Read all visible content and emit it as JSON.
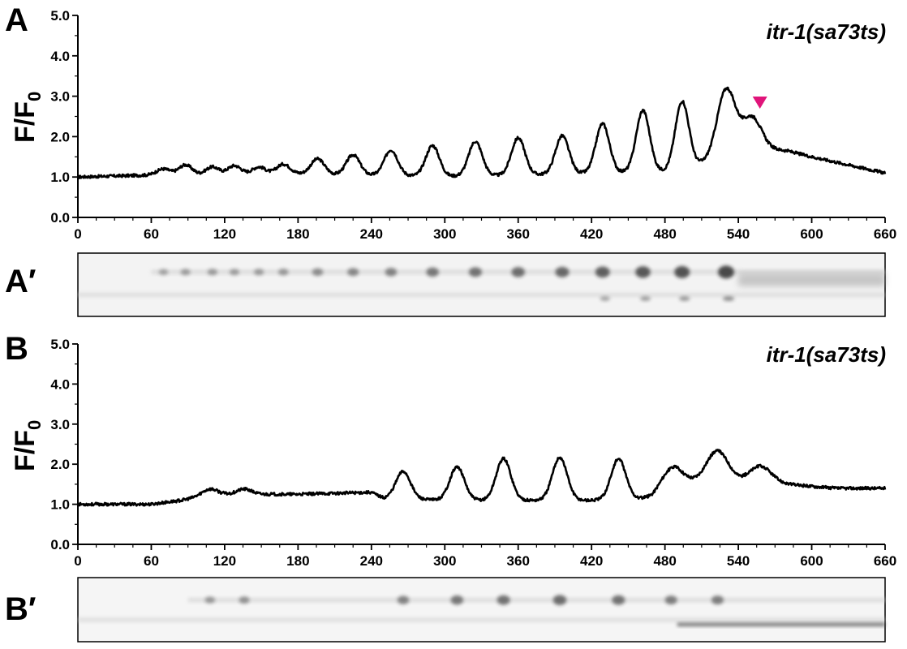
{
  "colors": {
    "trace": "#000000",
    "marker": "#e0147a",
    "kymo_bg": "#f2f2f2",
    "kymo_dark": "#404040"
  },
  "chart_data": [
    {
      "type": "line",
      "panel": "A",
      "annotation": "itr-1(sa73ts)",
      "ylabel_main": "F/F",
      "ylabel_sub": "0",
      "xlim": [
        0,
        660
      ],
      "ylim": [
        0,
        5
      ],
      "x_ticks": [
        0,
        60,
        120,
        180,
        240,
        300,
        360,
        420,
        480,
        540,
        600,
        660
      ],
      "y_ticks": [
        "0.0",
        "1.0",
        "2.0",
        "3.0",
        "4.0",
        "5.0"
      ],
      "grid": false,
      "marker_x": 555,
      "baseline": [
        [
          0,
          1.0
        ],
        [
          60,
          1.05
        ],
        [
          120,
          1.05
        ],
        [
          180,
          1.08
        ],
        [
          240,
          1.05
        ],
        [
          300,
          1.02
        ],
        [
          360,
          1.05
        ],
        [
          420,
          1.1
        ],
        [
          480,
          1.15
        ],
        [
          520,
          1.4
        ],
        [
          540,
          1.65
        ],
        [
          560,
          1.72
        ],
        [
          580,
          1.65
        ],
        [
          600,
          1.5
        ],
        [
          630,
          1.3
        ],
        [
          660,
          1.1
        ]
      ],
      "peaks": [
        {
          "x": 70,
          "y": 1.2
        },
        {
          "x": 88,
          "y": 1.3
        },
        {
          "x": 110,
          "y": 1.25
        },
        {
          "x": 128,
          "y": 1.28
        },
        {
          "x": 148,
          "y": 1.25
        },
        {
          "x": 168,
          "y": 1.32
        },
        {
          "x": 196,
          "y": 1.45
        },
        {
          "x": 225,
          "y": 1.55
        },
        {
          "x": 256,
          "y": 1.67
        },
        {
          "x": 290,
          "y": 1.78
        },
        {
          "x": 325,
          "y": 1.88
        },
        {
          "x": 360,
          "y": 1.97
        },
        {
          "x": 396,
          "y": 2.02
        },
        {
          "x": 429,
          "y": 2.32
        },
        {
          "x": 462,
          "y": 2.65
        },
        {
          "x": 494,
          "y": 2.88
        },
        {
          "x": 530,
          "y": 3.18
        },
        {
          "x": 551,
          "y": 2.48
        }
      ]
    },
    {
      "type": "line",
      "panel": "B",
      "annotation": "itr-1(sa73ts)",
      "ylabel_main": "F/F",
      "ylabel_sub": "0",
      "xlim": [
        0,
        660
      ],
      "ylim": [
        0,
        5
      ],
      "x_ticks": [
        0,
        60,
        120,
        180,
        240,
        300,
        360,
        420,
        480,
        540,
        600,
        660
      ],
      "y_ticks": [
        "0.0",
        "1.0",
        "2.0",
        "3.0",
        "4.0",
        "5.0"
      ],
      "grid": false,
      "baseline": [
        [
          0,
          1.0
        ],
        [
          60,
          1.0
        ],
        [
          85,
          1.1
        ],
        [
          100,
          1.2
        ],
        [
          120,
          1.25
        ],
        [
          180,
          1.25
        ],
        [
          240,
          1.3
        ],
        [
          250,
          1.15
        ],
        [
          300,
          1.1
        ],
        [
          360,
          1.1
        ],
        [
          420,
          1.1
        ],
        [
          470,
          1.15
        ],
        [
          490,
          1.5
        ],
        [
          520,
          1.6
        ],
        [
          540,
          1.55
        ],
        [
          580,
          1.5
        ],
        [
          620,
          1.4
        ],
        [
          660,
          1.4
        ]
      ],
      "peaks": [
        {
          "x": 108,
          "y": 1.38
        },
        {
          "x": 136,
          "y": 1.38
        },
        {
          "x": 266,
          "y": 1.82
        },
        {
          "x": 310,
          "y": 1.93
        },
        {
          "x": 348,
          "y": 2.14
        },
        {
          "x": 394,
          "y": 2.17
        },
        {
          "x": 442,
          "y": 2.13
        },
        {
          "x": 485,
          "y": 1.9
        },
        {
          "x": 523,
          "y": 2.33
        },
        {
          "x": 558,
          "y": 1.95
        }
      ]
    }
  ],
  "kymographs": [
    {
      "label": "A′",
      "spots_x": [
        70,
        88,
        110,
        128,
        148,
        168,
        196,
        225,
        256,
        290,
        325,
        360,
        396,
        429,
        462,
        494,
        530
      ],
      "spot_strength": [
        0.15,
        0.2,
        0.22,
        0.2,
        0.22,
        0.25,
        0.35,
        0.4,
        0.45,
        0.55,
        0.6,
        0.65,
        0.7,
        0.78,
        0.85,
        0.9,
        1.0
      ]
    },
    {
      "label": "B′",
      "spots_x": [
        108,
        136,
        266,
        310,
        348,
        394,
        442,
        485,
        523
      ],
      "spot_strength": [
        0.25,
        0.3,
        0.45,
        0.55,
        0.6,
        0.65,
        0.6,
        0.5,
        0.5
      ]
    }
  ]
}
